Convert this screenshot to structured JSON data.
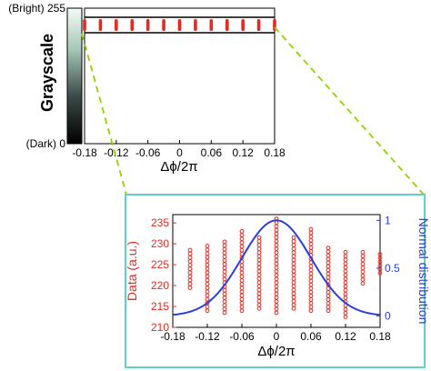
{
  "colors": {
    "data_red": "#e8281e",
    "normal_blue": "#2c3fd6",
    "zoom_green": "#8fd400",
    "inset_border": "#5ecfcf",
    "axis": "#000000"
  },
  "colorbar": {
    "title": "Grayscale",
    "top_label": "(Bright) 255",
    "bottom_label": "(Dark) 0"
  },
  "chart_data": [
    {
      "type": "scatter",
      "description_role": "top-panel",
      "xlabel": "Δϕ/2π",
      "ylabel": "",
      "xlim": [
        -0.18,
        0.18
      ],
      "xticks": [
        "-0.18",
        "-0.12",
        "-0.06",
        "0",
        "0.06",
        "0.12",
        "0.18"
      ],
      "xtick_values": [
        -0.18,
        -0.12,
        -0.06,
        0,
        0.06,
        0.12,
        0.18
      ],
      "grid": false,
      "x": [
        -0.18,
        -0.15,
        -0.12,
        -0.09,
        -0.06,
        -0.03,
        0,
        0.03,
        0.06,
        0.09,
        0.12,
        0.15,
        0.18
      ]
    },
    {
      "type": "scatter",
      "description_role": "inset",
      "xlabel": "Δϕ/2π",
      "ylabel": "Data (a.u.)",
      "y2label": "Normal distribution",
      "xlim": [
        -0.18,
        0.18
      ],
      "ylim": [
        210,
        237
      ],
      "y2lim": [
        -0.12,
        1.06
      ],
      "xticks": [
        "-0.18",
        "-0.12",
        "-0.06",
        "0",
        "0.06",
        "0.12",
        "0.18"
      ],
      "xtick_values": [
        -0.18,
        -0.12,
        -0.06,
        0,
        0.06,
        0.12,
        0.18
      ],
      "yticks": [
        "210",
        "215",
        "220",
        "225",
        "230",
        "235"
      ],
      "ytick_values": [
        210,
        215,
        220,
        225,
        230,
        235
      ],
      "y2ticks": [
        "0",
        "0.5",
        "1"
      ],
      "y2tick_values": [
        0,
        0.5,
        1
      ],
      "grid": false,
      "series": [
        {
          "columns": [
            {
              "x": -0.15,
              "ymin": 219.5,
              "ymax": 228.5
            },
            {
              "x": -0.12,
              "ymin": 214.0,
              "ymax": 229.5
            },
            {
              "x": -0.09,
              "ymin": 213.5,
              "ymax": 230.5
            },
            {
              "x": -0.06,
              "ymin": 214.0,
              "ymax": 233.0
            },
            {
              "x": -0.03,
              "ymin": 214.5,
              "ymax": 231.5
            },
            {
              "x": 0.0,
              "ymin": 213.5,
              "ymax": 236.0
            },
            {
              "x": 0.03,
              "ymin": 214.5,
              "ymax": 231.5
            },
            {
              "x": 0.06,
              "ymin": 214.0,
              "ymax": 233.5
            },
            {
              "x": 0.09,
              "ymin": 214.0,
              "ymax": 229.0
            },
            {
              "x": 0.12,
              "ymin": 212.5,
              "ymax": 228.0
            },
            {
              "x": 0.15,
              "ymin": 220.5,
              "ymax": 228.0
            },
            {
              "x": 0.18,
              "ymin": 223.0,
              "ymax": 227.5
            }
          ]
        },
        {
          "curve": "normal",
          "mean": 0,
          "sigma": 0.06,
          "peak": 1
        }
      ]
    }
  ]
}
